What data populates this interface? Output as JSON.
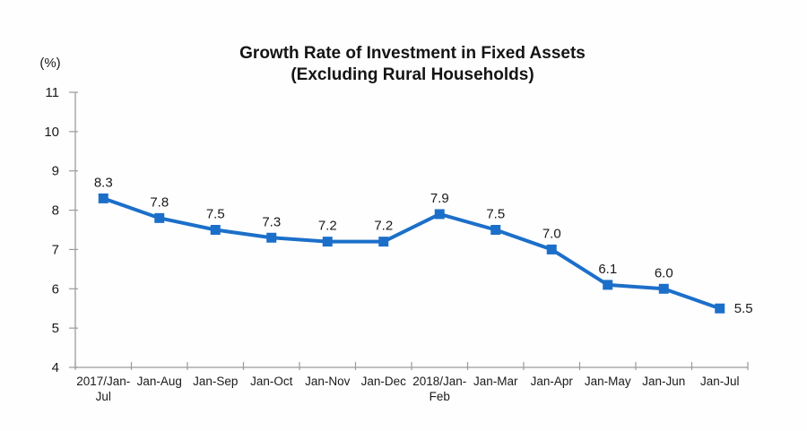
{
  "chart": {
    "title_line1": "Growth Rate of Investment in Fixed Assets",
    "title_line2": "(Excluding Rural Households)",
    "y_axis_unit_label": "(%)"
  },
  "chart_data": {
    "type": "line",
    "title": "Growth Rate of Investment in Fixed Assets (Excluding Rural Households)",
    "categories": [
      "2017/Jan-\nJul",
      "Jan-Aug",
      "Jan-Sep",
      "Jan-Oct",
      "Jan-Nov",
      "Jan-Dec",
      "2018/Jan-\nFeb",
      "Jan-Mar",
      "Jan-Apr",
      "Jan-May",
      "Jan-Jun",
      "Jan-Jul"
    ],
    "values": [
      8.3,
      7.8,
      7.5,
      7.3,
      7.2,
      7.2,
      7.9,
      7.5,
      7.0,
      6.1,
      6.0,
      5.5
    ],
    "data_labels": [
      "8.3",
      "7.8",
      "7.5",
      "7.3",
      "7.2",
      "7.2",
      "7.9",
      "7.5",
      "7.0",
      "6.1",
      "6.0",
      "5.5"
    ],
    "xlabel": "",
    "ylabel": "(%)",
    "ylim": [
      4,
      11
    ],
    "y_ticks": [
      11,
      10,
      9,
      8,
      7,
      6,
      5,
      4
    ],
    "grid": false,
    "legend": "none",
    "line_color": "#1C6FC9",
    "marker": "square",
    "axis_color": "#9B9B9B",
    "text_color": "#1A1A1A"
  }
}
